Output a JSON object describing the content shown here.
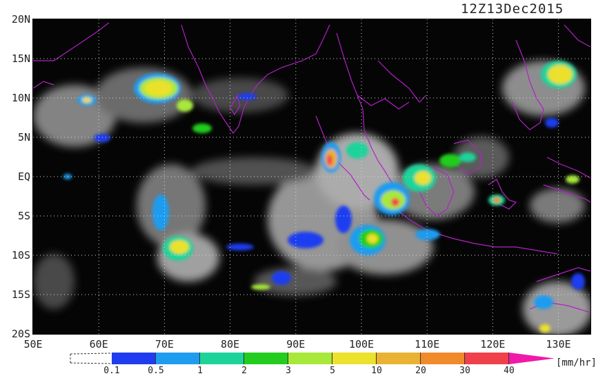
{
  "title": "12Z13Dec2015",
  "lat_labels": [
    "20N",
    "15N",
    "10N",
    "5N",
    "EQ",
    "5S",
    "10S",
    "15S",
    "20S"
  ],
  "lon_labels": [
    "50E",
    "60E",
    "70E",
    "80E",
    "90E",
    "100E",
    "110E",
    "120E",
    "130E"
  ],
  "colorbar": {
    "colors": [
      "#1f3cf0",
      "#1e9cf0",
      "#1dd39a",
      "#23cc1e",
      "#a8e83a",
      "#ece12c",
      "#eab233",
      "#f08a2a",
      "#f0404a",
      "#f01aa8"
    ],
    "ticks": [
      "0.1",
      "0.5",
      "1",
      "2",
      "3",
      "5",
      "10",
      "20",
      "30",
      "40"
    ],
    "unit": "[mm/hr]"
  }
}
